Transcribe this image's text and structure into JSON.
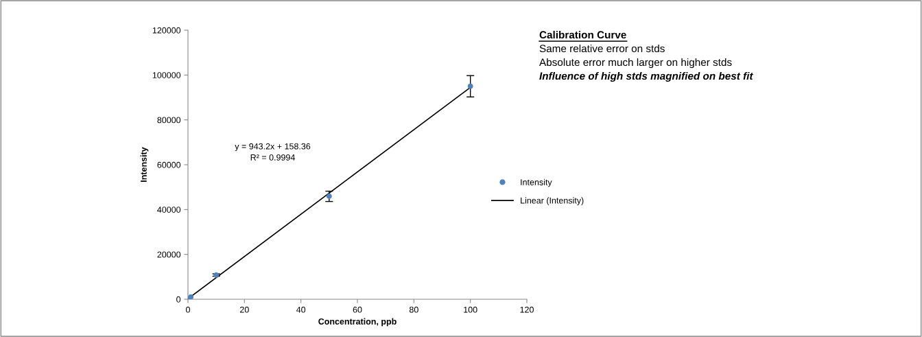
{
  "chart_data": {
    "type": "scatter",
    "xlabel": "Concentration, ppb",
    "ylabel": "Intensity",
    "xlim": [
      0,
      120
    ],
    "xticks": [
      0,
      20,
      40,
      60,
      80,
      100,
      120
    ],
    "ylim": [
      0,
      120000
    ],
    "yticks": [
      0,
      20000,
      40000,
      60000,
      80000,
      100000,
      120000
    ],
    "grid": false,
    "legend": "right",
    "marker": "circle",
    "series": [
      {
        "name": "Intensity",
        "color": "#4f81bd",
        "x": [
          0,
          1,
          10,
          50,
          100
        ],
        "values": [
          0,
          1000,
          10800,
          45900,
          95000
        ],
        "errors": [
          null,
          null,
          540,
          2300,
          4750
        ]
      },
      {
        "name": "Linear (Intensity)",
        "type": "line",
        "color": "#000000",
        "x": [
          0,
          100
        ],
        "values": [
          200,
          94500
        ],
        "marker": "none",
        "line_style": "solid"
      }
    ],
    "annotations": [
      "y = 943.2x + 158.36\nR² = 0.9994",
      "Calibration Curve",
      "Same relative error on stds",
      "Absolute error much larger on higher stds",
      "Influence of high stds magnified on best fit"
    ]
  }
}
